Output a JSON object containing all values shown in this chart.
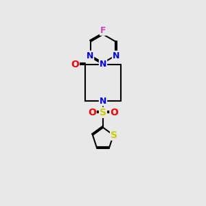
{
  "background_color": "#e8e8e8",
  "bond_color": "#000000",
  "atom_colors": {
    "N": "#0000ff",
    "O": "#ff0000",
    "S_sulfonyl": "#cccc00",
    "S_thiophene": "#cccc00",
    "F": "#cc44cc",
    "C": "#000000"
  },
  "font_size_atoms": 9,
  "line_width": 1.5,
  "xlim": [
    0,
    10
  ],
  "ylim": [
    0,
    15
  ]
}
